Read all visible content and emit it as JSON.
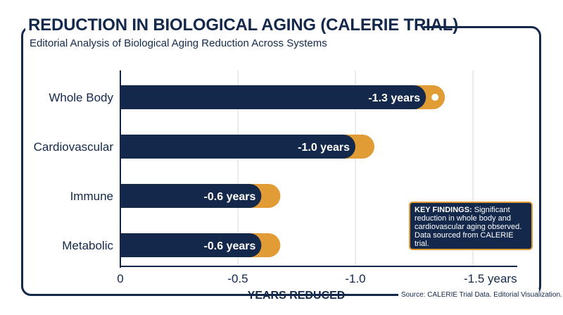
{
  "title": "REDUCTION IN BIOLOGICAL AGING (CALERIE TRIAL)",
  "subtitle": "Editorial Analysis of Biological Aging Reduction Across Systems",
  "source": "Source: CALERIE Trial Data. Editorial Visualization.",
  "key_findings": {
    "label": "KEY FINDINGS:",
    "text": "Significant reduction in whole body and cardiovascular aging observed. Data sourced from CALERIE trial."
  },
  "colors": {
    "navy": "#14284b",
    "orange": "#e19c35",
    "grid": "#d9d9d9"
  },
  "chart_data": {
    "type": "bar",
    "orientation": "horizontal",
    "categories": [
      "Whole Body",
      "Cardiovascular",
      "Immune",
      "Metabolic"
    ],
    "values": [
      -1.3,
      -1.0,
      -0.6,
      -0.6
    ],
    "data_labels": [
      "-1.3 years",
      "-1.0 years",
      "-0.6 years",
      "-0.6 years"
    ],
    "highlight_marker_category": "Whole Body",
    "xlabel": "YEARS REDUCED",
    "xticks": [
      {
        "value": 0,
        "label": "0"
      },
      {
        "value": -0.5,
        "label": "-0.5"
      },
      {
        "value": -1.0,
        "label": "-1.0"
      },
      {
        "value": -1.5,
        "label": "-1.5 years"
      }
    ],
    "xlim": [
      0,
      -1.5
    ],
    "grid": "vertical"
  }
}
